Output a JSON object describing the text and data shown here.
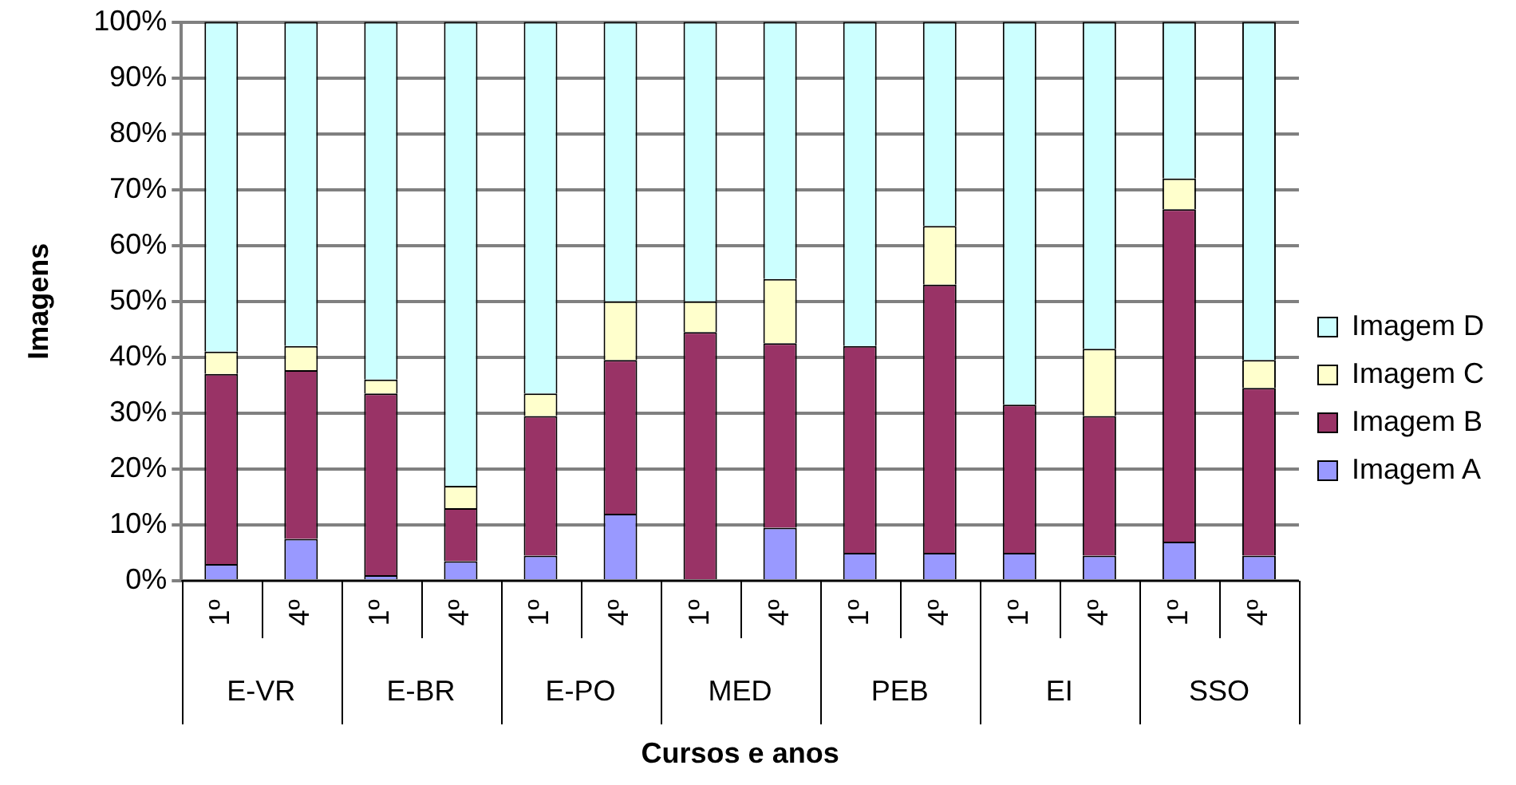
{
  "chart_data": {
    "type": "bar",
    "stacked": true,
    "xlabel": "Cursos e anos",
    "ylabel": "Imagens",
    "categories": [
      "1º",
      "4º",
      "1º",
      "4º",
      "1º",
      "4º",
      "1º",
      "4º",
      "1º",
      "4º",
      "1º",
      "4º",
      "1º",
      "4º"
    ],
    "annotations": [
      "E-VR",
      "E-BR",
      "E-PO",
      "MED",
      "PEB",
      "EI",
      "SSO"
    ],
    "series": [
      {
        "name": "Imagem A",
        "color": "#9999ff",
        "values": [
          3,
          7.5,
          1,
          3.5,
          4.5,
          12,
          0,
          9.5,
          5,
          5,
          5,
          4.5,
          7,
          4.5
        ]
      },
      {
        "name": "Imagem B",
        "color": "#993366",
        "values": [
          34,
          30.2,
          32.5,
          9.5,
          25,
          27.5,
          44.5,
          33,
          37,
          48,
          26.5,
          25,
          59.5,
          30
        ]
      },
      {
        "name": "Imagem C",
        "color": "#ffffcc",
        "values": [
          4,
          4.3,
          2.5,
          4,
          4,
          10.5,
          5.5,
          11.5,
          0,
          10.5,
          0,
          12,
          5.5,
          5
        ]
      },
      {
        "name": "Imagem D",
        "color": "#ccffff",
        "values": [
          59,
          58,
          64,
          83,
          66.5,
          50,
          50,
          46,
          58,
          36.5,
          68.5,
          58.5,
          28,
          60.5
        ]
      }
    ],
    "ylim": [
      0,
      100
    ],
    "yticks": [
      {
        "value": 0,
        "label": "0%"
      },
      {
        "value": 10,
        "label": "10%"
      },
      {
        "value": 20,
        "label": "20%"
      },
      {
        "value": 30,
        "label": "30%"
      },
      {
        "value": 40,
        "label": "40%"
      },
      {
        "value": 50,
        "label": "50%"
      },
      {
        "value": 60,
        "label": "60%"
      },
      {
        "value": 70,
        "label": "70%"
      },
      {
        "value": 80,
        "label": "80%"
      },
      {
        "value": 90,
        "label": "90%"
      },
      {
        "value": 100,
        "label": "100%"
      }
    ],
    "grid": "y",
    "legend": "right"
  }
}
